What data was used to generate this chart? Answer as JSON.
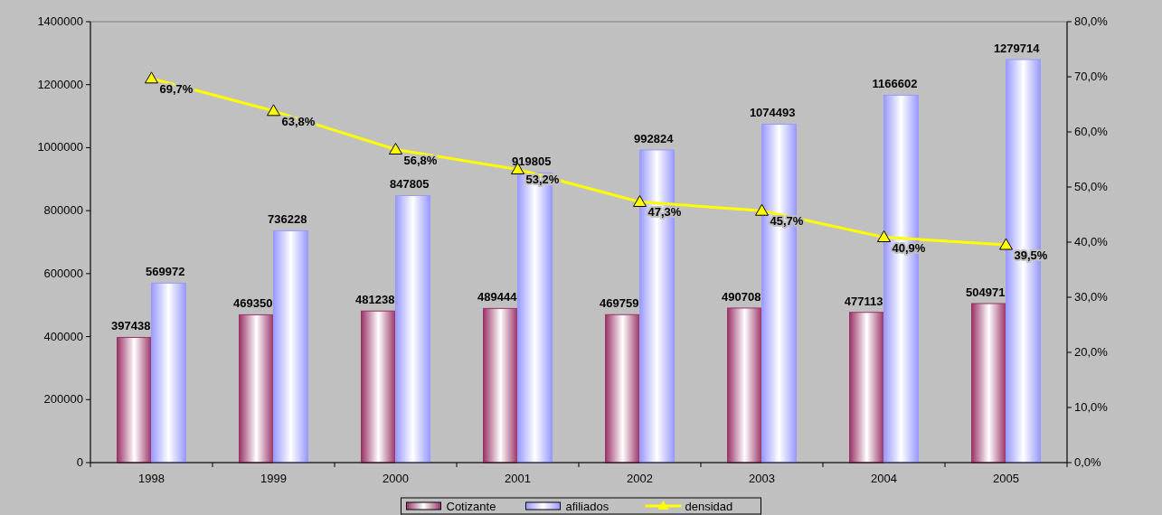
{
  "chart_data": {
    "type": "bar",
    "categories": [
      "1998",
      "1999",
      "2000",
      "2001",
      "2002",
      "2003",
      "2004",
      "2005"
    ],
    "series": [
      {
        "name": "Cotizante",
        "color": "#993366",
        "values": [
          397438,
          469350,
          481238,
          489444,
          469759,
          490708,
          477113,
          504971
        ],
        "value_labels": [
          "397438",
          "469350",
          "481238",
          "489444",
          "469759",
          "490708",
          "477113",
          "504971"
        ]
      },
      {
        "name": "afiliados",
        "color": "#9999ff",
        "values": [
          569972,
          736228,
          847805,
          919805,
          992824,
          1074493,
          1166602,
          1279714
        ],
        "value_labels": [
          "569972",
          "736228",
          "847805",
          "919805",
          "992824",
          "1074493",
          "1166602",
          "1279714"
        ]
      },
      {
        "name": "densidad",
        "type": "line",
        "axis": "y2",
        "color": "#ffff00",
        "marker": "triangle",
        "values": [
          69.7,
          63.8,
          56.8,
          53.2,
          47.3,
          45.7,
          40.9,
          39.5
        ],
        "value_labels": [
          "69,7%",
          "63,8%",
          "56,8%",
          "53,2%",
          "47,3%",
          "45,7%",
          "40,9%",
          "39,5%"
        ]
      }
    ],
    "ylim": [
      0,
      1400000
    ],
    "yticks": [
      0,
      200000,
      400000,
      600000,
      800000,
      1000000,
      1200000,
      1400000
    ],
    "y2lim": [
      0,
      80
    ],
    "y2ticks": [
      {
        "value": 0,
        "label": "0,0%"
      },
      {
        "value": 10,
        "label": "10,0%"
      },
      {
        "value": 20,
        "label": "20,0%"
      },
      {
        "value": 30,
        "label": "30,0%"
      },
      {
        "value": 40,
        "label": "40,0%"
      },
      {
        "value": 50,
        "label": "50,0%"
      },
      {
        "value": 60,
        "label": "60,0%"
      },
      {
        "value": 70,
        "label": "70,0%"
      },
      {
        "value": 80,
        "label": "80,0%"
      }
    ],
    "legend": "bottom",
    "grid": false
  }
}
